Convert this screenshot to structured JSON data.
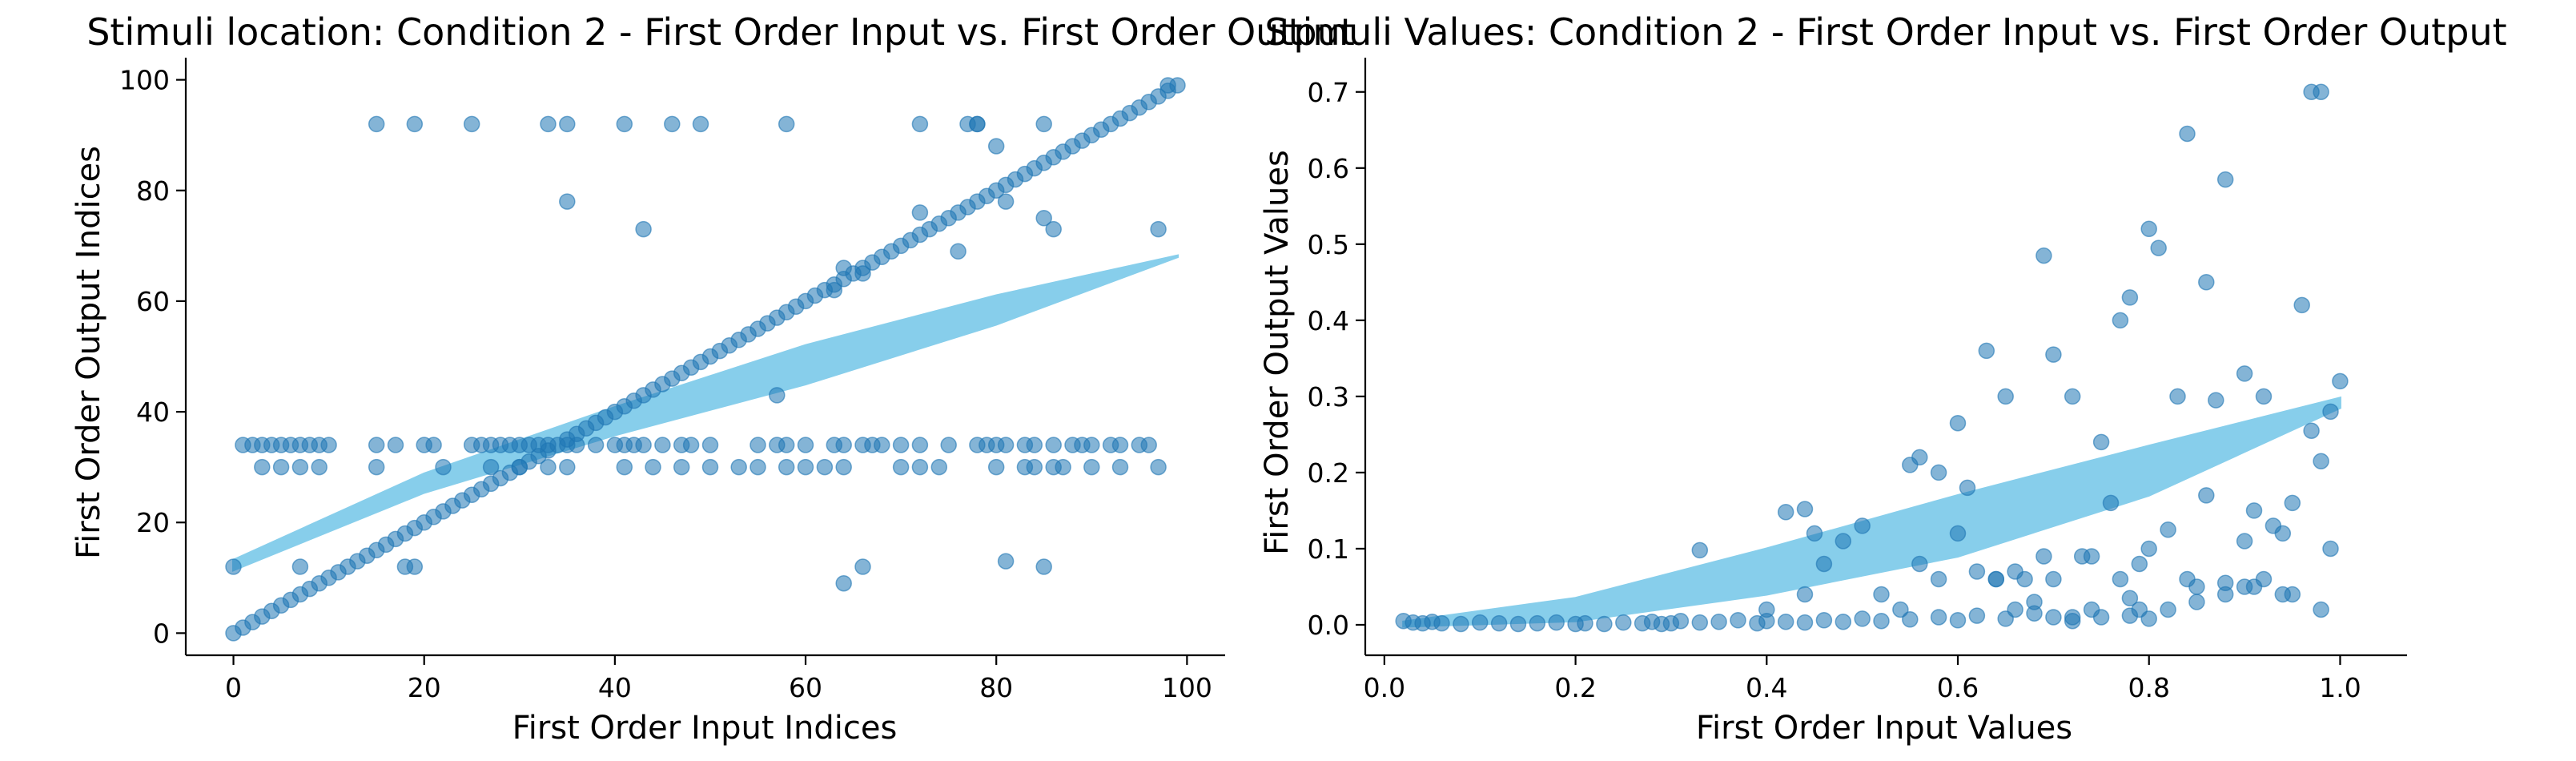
{
  "chart_data": [
    {
      "type": "scatter",
      "title": "Stimuli location: Condition 2 - First Order Input vs. First Order Output",
      "xlabel": "First Order Input Indices",
      "ylabel": "First Order Output Indices",
      "xlim": [
        -5,
        104
      ],
      "ylim": [
        -4,
        104
      ],
      "xticks": [
        0,
        20,
        40,
        60,
        80,
        100
      ],
      "yticks": [
        0,
        20,
        40,
        60,
        80,
        100
      ],
      "grid": false,
      "point_color": "#1f77b4",
      "curve_color": "#87ceeb",
      "series": [
        {
          "kind": "points",
          "x": [
            0,
            1,
            2,
            3,
            4,
            5,
            6,
            7,
            8,
            9,
            10,
            11,
            12,
            13,
            14,
            15,
            16,
            17,
            18,
            19,
            20,
            21,
            22,
            23,
            24,
            25,
            26,
            27,
            28,
            29,
            30,
            31,
            32,
            33,
            34,
            35,
            36,
            37,
            38,
            39,
            40,
            41,
            42,
            43,
            44,
            45,
            46,
            47,
            48,
            49,
            50,
            51,
            52,
            53,
            54,
            55,
            56,
            57,
            58,
            59,
            60,
            61,
            62,
            63,
            64,
            65,
            66,
            67,
            68,
            69,
            70,
            71,
            72,
            73,
            74,
            75,
            76,
            77,
            78,
            79,
            80,
            81,
            82,
            83,
            84,
            85,
            86,
            87,
            88,
            89,
            90,
            91,
            92,
            93,
            94,
            95,
            96,
            97,
            98,
            99,
            1,
            2,
            3,
            4,
            5,
            6,
            7,
            8,
            9,
            10,
            15,
            17,
            20,
            21,
            25,
            26,
            27,
            28,
            29,
            30,
            31,
            32,
            33,
            35,
            36,
            38,
            40,
            41,
            42,
            43,
            45,
            47,
            48,
            50,
            55,
            57,
            58,
            60,
            63,
            64,
            66,
            67,
            68,
            70,
            72,
            75,
            78,
            79,
            80,
            81,
            83,
            84,
            86,
            88,
            89,
            90,
            92,
            93,
            95,
            96,
            3,
            5,
            7,
            9,
            15,
            22,
            27,
            30,
            33,
            35,
            41,
            44,
            47,
            50,
            53,
            55,
            58,
            60,
            62,
            64,
            70,
            72,
            74,
            80,
            83,
            84,
            86,
            87,
            90,
            93,
            97,
            15,
            19,
            25,
            33,
            35,
            41,
            46,
            49,
            58,
            72,
            77,
            78,
            85,
            35,
            43,
            63,
            64,
            66,
            72,
            76,
            78,
            80,
            81,
            85,
            86,
            97,
            98,
            0,
            7,
            18,
            19,
            57,
            64,
            66,
            81,
            85
          ],
          "y": [
            0,
            1,
            2,
            3,
            4,
            5,
            6,
            7,
            8,
            9,
            10,
            11,
            12,
            13,
            14,
            15,
            16,
            17,
            18,
            19,
            20,
            21,
            22,
            23,
            24,
            25,
            26,
            27,
            28,
            29,
            30,
            31,
            32,
            33,
            34,
            35,
            36,
            37,
            38,
            39,
            40,
            41,
            42,
            43,
            44,
            45,
            46,
            47,
            48,
            49,
            50,
            51,
            52,
            53,
            54,
            55,
            56,
            57,
            58,
            59,
            60,
            61,
            62,
            63,
            64,
            65,
            66,
            67,
            68,
            69,
            70,
            71,
            72,
            73,
            74,
            75,
            76,
            77,
            78,
            79,
            80,
            81,
            82,
            83,
            84,
            85,
            86,
            87,
            88,
            89,
            90,
            91,
            92,
            93,
            94,
            95,
            96,
            97,
            98,
            99,
            34,
            34,
            34,
            34,
            34,
            34,
            34,
            34,
            34,
            34,
            34,
            34,
            34,
            34,
            34,
            34,
            34,
            34,
            34,
            34,
            34,
            34,
            34,
            34,
            34,
            34,
            34,
            34,
            34,
            34,
            34,
            34,
            34,
            34,
            34,
            34,
            34,
            34,
            34,
            34,
            34,
            34,
            34,
            34,
            34,
            34,
            34,
            34,
            34,
            34,
            34,
            34,
            34,
            34,
            34,
            34,
            34,
            34,
            34,
            34,
            30,
            30,
            30,
            30,
            30,
            30,
            30,
            30,
            30,
            30,
            30,
            30,
            30,
            30,
            30,
            30,
            30,
            30,
            30,
            30,
            30,
            30,
            30,
            30,
            30,
            30,
            30,
            30,
            30,
            30,
            30,
            92,
            92,
            92,
            92,
            92,
            92,
            92,
            92,
            92,
            92,
            92,
            92,
            92,
            78,
            73,
            62,
            66,
            65,
            76,
            69,
            92,
            88,
            78,
            75,
            73,
            73,
            99,
            12,
            12,
            12,
            12,
            43,
            9,
            12,
            13,
            12
          ]
        },
        {
          "kind": "fit_band",
          "x_range": [
            0,
            99
          ],
          "upper": [
            [
              0,
              13.2
            ],
            [
              20,
              28.8
            ],
            [
              40,
              40.8
            ],
            [
              60,
              52.0
            ],
            [
              80,
              61.0
            ],
            [
              99,
              68.2
            ]
          ],
          "lower": [
            [
              0,
              11.4
            ],
            [
              20,
              25.4
            ],
            [
              40,
              35.8
            ],
            [
              60,
              45.0
            ],
            [
              80,
              55.8
            ],
            [
              99,
              68.0
            ]
          ]
        }
      ]
    },
    {
      "type": "scatter",
      "title": "Stimuli Values: Condition 2 - First Order Input vs. First Order Output",
      "xlabel": "First Order Input Values",
      "ylabel": "First Order Output Values",
      "xlim": [
        -0.02,
        1.07
      ],
      "ylim": [
        -0.04,
        0.745
      ],
      "xticks": [
        0.0,
        0.2,
        0.4,
        0.6,
        0.8,
        1.0
      ],
      "yticks": [
        0.0,
        0.1,
        0.2,
        0.3,
        0.4,
        0.5,
        0.6,
        0.7
      ],
      "grid": false,
      "point_color": "#1f77b4",
      "curve_color": "#87ceeb",
      "series": [
        {
          "kind": "points",
          "x": [
            0.02,
            0.03,
            0.04,
            0.05,
            0.06,
            0.08,
            0.1,
            0.12,
            0.14,
            0.16,
            0.18,
            0.2,
            0.21,
            0.23,
            0.25,
            0.27,
            0.28,
            0.29,
            0.3,
            0.31,
            0.33,
            0.35,
            0.37,
            0.39,
            0.4,
            0.42,
            0.44,
            0.46,
            0.48,
            0.5,
            0.52,
            0.55,
            0.58,
            0.6,
            0.62,
            0.65,
            0.68,
            0.7,
            0.72,
            0.75,
            0.78,
            0.8,
            0.82,
            0.85,
            0.88,
            0.9,
            0.92,
            0.95,
            0.98,
            0.33,
            0.42,
            0.44,
            0.45,
            0.46,
            0.48,
            0.5,
            0.55,
            0.56,
            0.58,
            0.6,
            0.61,
            0.63,
            0.65,
            0.66,
            0.67,
            0.69,
            0.7,
            0.72,
            0.73,
            0.75,
            0.77,
            0.78,
            0.8,
            0.81,
            0.83,
            0.84,
            0.86,
            0.87,
            0.88,
            0.9,
            0.91,
            0.92,
            0.94,
            0.95,
            0.96,
            0.97,
            0.98,
            0.99,
            1.0,
            0.64,
            0.69,
            0.7,
            0.74,
            0.77,
            0.79,
            0.8,
            0.84,
            0.86,
            0.88,
            0.97,
            0.98,
            0.56,
            0.58,
            0.6,
            0.62,
            0.64,
            0.76,
            0.78,
            0.82,
            0.9,
            0.93,
            0.4,
            0.44,
            0.52,
            0.54,
            0.66,
            0.68,
            0.72,
            0.74,
            0.79,
            0.85,
            0.91,
            0.94,
            0.99
          ],
          "y": [
            0.005,
            0.003,
            0.002,
            0.004,
            0.002,
            0.001,
            0.003,
            0.002,
            0.001,
            0.002,
            0.003,
            0.001,
            0.002,
            0.001,
            0.003,
            0.002,
            0.004,
            0.001,
            0.002,
            0.005,
            0.003,
            0.004,
            0.006,
            0.002,
            0.005,
            0.004,
            0.003,
            0.006,
            0.004,
            0.008,
            0.005,
            0.007,
            0.01,
            0.006,
            0.012,
            0.008,
            0.015,
            0.01,
            0.005,
            0.01,
            0.012,
            0.008,
            0.02,
            0.03,
            0.04,
            0.05,
            0.06,
            0.04,
            0.02,
            0.098,
            0.148,
            0.152,
            0.12,
            0.08,
            0.11,
            0.13,
            0.21,
            0.22,
            0.2,
            0.265,
            0.18,
            0.36,
            0.3,
            0.07,
            0.06,
            0.485,
            0.355,
            0.3,
            0.09,
            0.24,
            0.4,
            0.43,
            0.52,
            0.495,
            0.3,
            0.645,
            0.45,
            0.295,
            0.585,
            0.33,
            0.15,
            0.3,
            0.04,
            0.16,
            0.42,
            0.7,
            0.7,
            0.28,
            0.32,
            0.06,
            0.09,
            0.06,
            0.09,
            0.06,
            0.08,
            0.1,
            0.06,
            0.17,
            0.055,
            0.255,
            0.215,
            0.08,
            0.06,
            0.12,
            0.07,
            0.06,
            0.16,
            0.035,
            0.125,
            0.11,
            0.13,
            0.02,
            0.04,
            0.04,
            0.02,
            0.02,
            0.03,
            0.01,
            0.02,
            0.02,
            0.05,
            0.05,
            0.12,
            0.1
          ],
          "y_extra_note": ""
        },
        {
          "kind": "fit_band",
          "x_range": [
            0.02,
            1.0
          ],
          "upper": [
            [
              0.02,
              0.004
            ],
            [
              0.2,
              0.035
            ],
            [
              0.4,
              0.1
            ],
            [
              0.6,
              0.17
            ],
            [
              0.8,
              0.235
            ],
            [
              1.0,
              0.298
            ]
          ],
          "lower": [
            [
              0.02,
              -0.002
            ],
            [
              0.2,
              0.005
            ],
            [
              0.4,
              0.04
            ],
            [
              0.6,
              0.09
            ],
            [
              0.8,
              0.17
            ],
            [
              1.0,
              0.285
            ]
          ]
        }
      ]
    }
  ]
}
